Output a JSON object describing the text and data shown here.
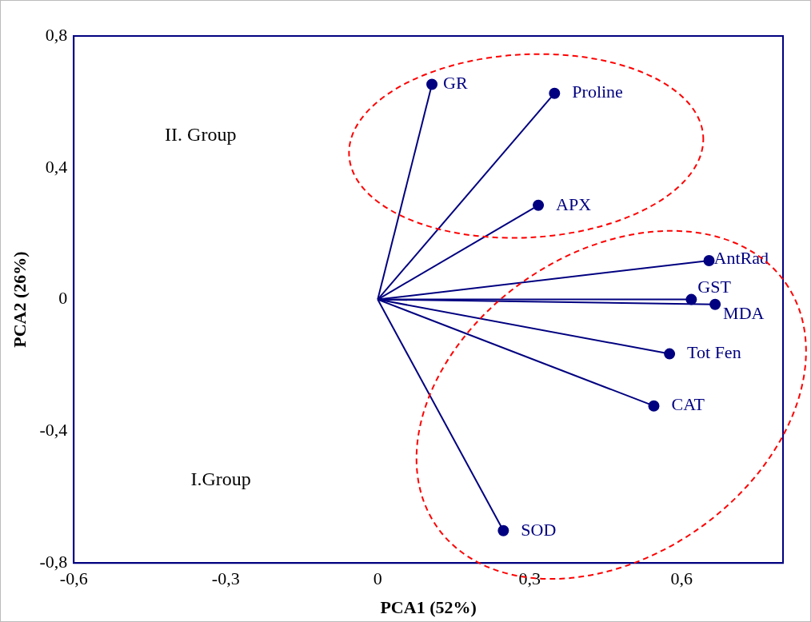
{
  "chart_data": {
    "type": "line",
    "xlabel": "PCA1 (52%)",
    "ylabel": "PCA2 (26%)",
    "xlim": [
      -0.6,
      0.8
    ],
    "xticks": [
      {
        "value": -0.6,
        "label": "-0,6"
      },
      {
        "value": -0.3,
        "label": "-0,3"
      },
      0,
      {
        "value": 0.3,
        "label": "0,3"
      },
      {
        "value": 0.6,
        "label": "0,6"
      }
    ],
    "ylim": [
      -0.8,
      0.8
    ],
    "yticks": [
      {
        "value": -0.8,
        "label": "-0,8"
      },
      {
        "value": -0.4,
        "label": "-0,4"
      },
      0,
      {
        "value": 0.4,
        "label": "0,4"
      },
      {
        "value": 0.8,
        "label": "0,8"
      }
    ],
    "grid": false,
    "legend": false,
    "marker": "circle",
    "line_style": "solid",
    "annotations": [
      "II. Group",
      "I.Group"
    ],
    "series": [
      {
        "name": "GR",
        "color": "#000080",
        "x": [
          0,
          0.107
        ],
        "values": [
          0,
          0.653
        ]
      },
      {
        "name": "Proline",
        "color": "#000080",
        "x": [
          0,
          0.349
        ],
        "values": [
          0,
          0.626
        ]
      },
      {
        "name": "APX",
        "color": "#000080",
        "x": [
          0,
          0.317
        ],
        "values": [
          0,
          0.286
        ]
      },
      {
        "name": "AntRad",
        "color": "#000080",
        "x": [
          0,
          0.654
        ],
        "values": [
          0,
          0.118
        ]
      },
      {
        "name": "GST",
        "color": "#000080",
        "x": [
          0,
          0.619
        ],
        "values": [
          0,
          0.0
        ]
      },
      {
        "name": "MDA",
        "color": "#000080",
        "x": [
          0,
          0.666
        ],
        "values": [
          0,
          -0.015
        ]
      },
      {
        "name": "Tot Fen",
        "color": "#000080",
        "x": [
          0,
          0.576
        ],
        "values": [
          0,
          -0.165
        ]
      },
      {
        "name": "CAT",
        "color": "#000080",
        "x": [
          0,
          0.545
        ],
        "values": [
          0,
          -0.323
        ]
      },
      {
        "name": "SOD",
        "color": "#000080",
        "x": [
          0,
          0.248
        ],
        "values": [
          0,
          -0.702
        ]
      }
    ]
  }
}
